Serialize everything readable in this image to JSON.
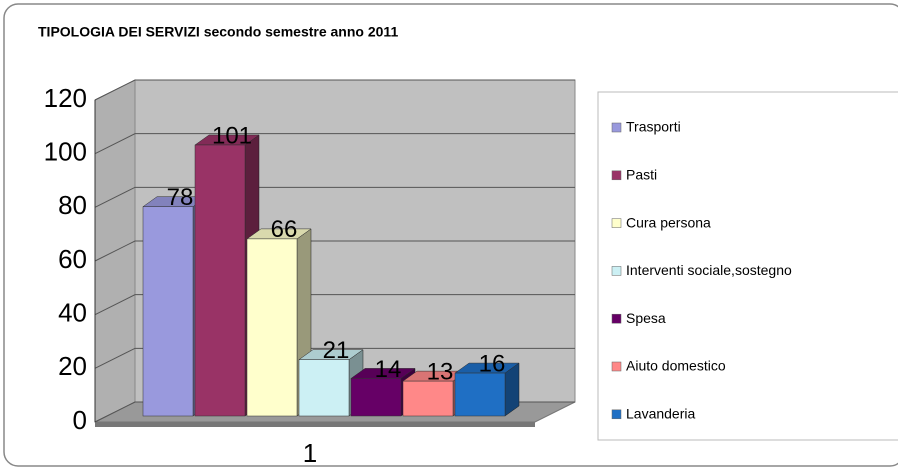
{
  "chart_data": {
    "type": "bar3d",
    "title": "TIPOLOGIA DEI SERVIZI secondo semestre anno 2011",
    "categories": [
      "1"
    ],
    "series": [
      {
        "name": "Trasporti",
        "color": "#9999dd",
        "values": [
          78
        ]
      },
      {
        "name": "Pasti",
        "color": "#993366",
        "values": [
          101
        ]
      },
      {
        "name": "Cura persona",
        "color": "#ffffcc",
        "values": [
          66
        ]
      },
      {
        "name": "Interventi sociale,sostegno",
        "color": "#ccf0f4",
        "values": [
          21
        ]
      },
      {
        "name": "Spesa",
        "color": "#660066",
        "values": [
          14
        ]
      },
      {
        "name": "Aiuto domestico",
        "color": "#ff8888",
        "values": [
          13
        ]
      },
      {
        "name": "Lavanderia",
        "color": "#1f6fc4",
        "values": [
          16
        ]
      }
    ],
    "ylim": [
      0,
      120
    ],
    "yticks": [
      0,
      20,
      40,
      60,
      80,
      100,
      120
    ],
    "grid": true,
    "legend": "right"
  }
}
